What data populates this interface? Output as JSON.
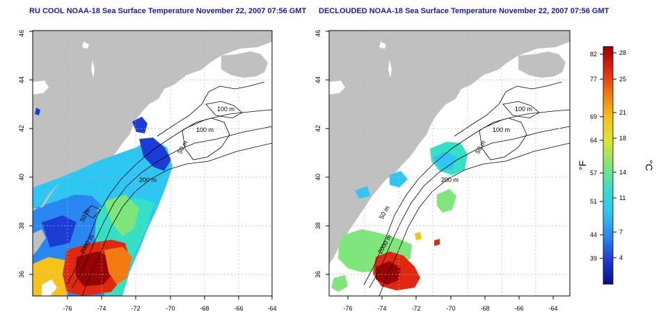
{
  "panels": [
    {
      "title": "RU COOL NOAA-18 Sea Surface Temperature November 22, 2007 07:56 GMT",
      "contour_labels": [
        "100 m",
        "100 m",
        "50 m",
        "200 m",
        "50 m",
        "2000 m"
      ]
    },
    {
      "title": "DECLOUDED NOAA-18 Sea Surface Temperature November 22, 2007 07:56 GMT",
      "contour_labels": [
        "100 m",
        "100 m",
        "50 m",
        "200 m",
        "50 m",
        "2000 m"
      ]
    }
  ],
  "map_axes": {
    "lon_ticks": [
      "-76",
      "-74",
      "-72",
      "-70",
      "-68",
      "-66",
      "-64"
    ],
    "lat_ticks": [
      "36",
      "38",
      "40",
      "42",
      "44",
      "46"
    ]
  },
  "colorbar": {
    "f_label": "°F",
    "c_label": "°C",
    "f_ticks": [
      "82",
      "77",
      "69",
      "64",
      "57",
      "51",
      "44",
      "39"
    ],
    "c_ticks": [
      "28",
      "25",
      "21",
      "18",
      "14",
      "11",
      "7",
      "4"
    ],
    "colors": [
      "#0b0b8a",
      "#1c3cd6",
      "#2a86f0",
      "#2ec6f2",
      "#34e0c6",
      "#7ee67a",
      "#d6e632",
      "#f6c21c",
      "#f27a10",
      "#e02810",
      "#9a0000"
    ]
  },
  "colors": {
    "land": "#c0c0c0",
    "title": "#1a1aa8"
  }
}
